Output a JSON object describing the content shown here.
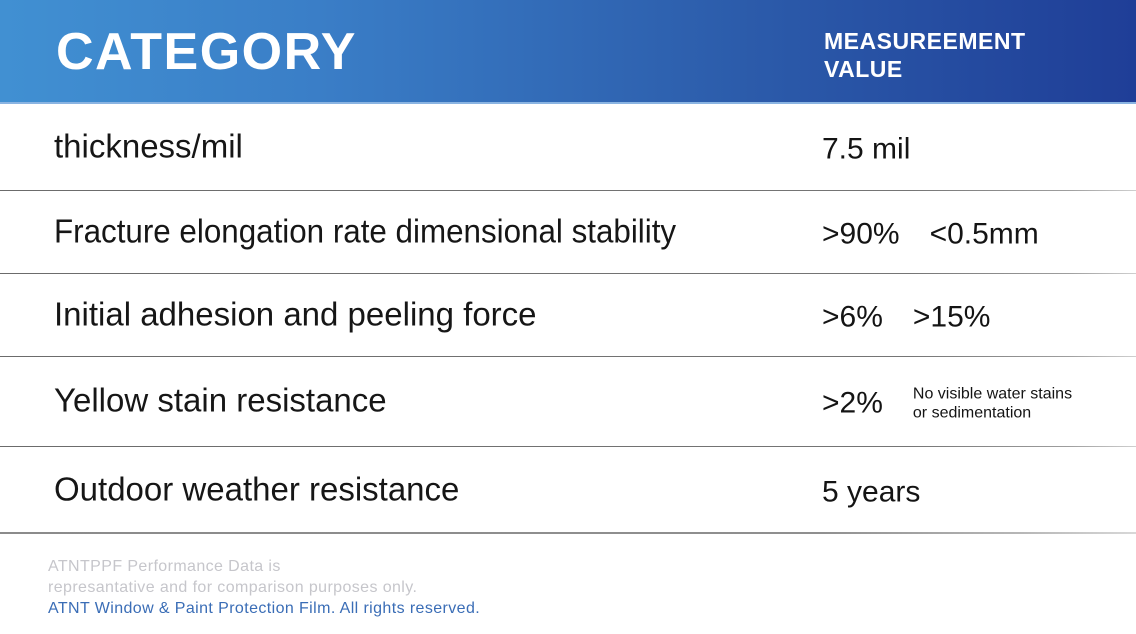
{
  "header": {
    "category_label": "CATEGORY",
    "value_label_line1": "MEASUREEMENT",
    "value_label_line2": "VALUE"
  },
  "table": {
    "rows": [
      {
        "label": "thickness/mil",
        "values": [
          "7.5 mil"
        ]
      },
      {
        "label": "Fracture elongation rate dimensional stability",
        "values": [
          ">90%",
          "<0.5mm"
        ]
      },
      {
        "label": "Initial adhesion and peeling force",
        "values": [
          ">6%",
          ">15%"
        ]
      },
      {
        "label": "Yellow stain resistance",
        "values": [
          ">2%"
        ],
        "note_lines": [
          "No visible water stains",
          "or sedimentation"
        ]
      },
      {
        "label": "Outdoor weather resistance",
        "values": [
          "5 years"
        ]
      }
    ]
  },
  "footer": {
    "line1": "ATNTPPF Performance Data is",
    "line2": "represantative and for comparison purposes only.",
    "line3": "ATNT Window & Paint Protection Film. All rights reserved."
  },
  "colors": {
    "header_gradient_start": "#4190D2",
    "header_gradient_end": "#1F3E97",
    "header_text": "#FFFFFF",
    "body_text": "#141414",
    "separator": "#6B6B6B",
    "footer_muted": "#C6C6CB",
    "footer_brand_blue": "#3A6DB6"
  }
}
